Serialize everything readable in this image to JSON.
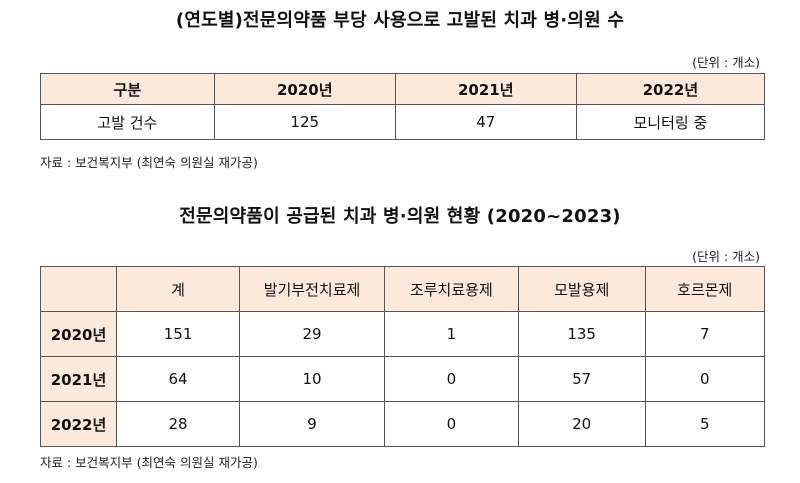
{
  "section1": {
    "title": "(연도별)전문의약품 부당 사용으로 고발된 치과 병·의원 수",
    "unit": "(단위 : 개소)",
    "columns": [
      "구분",
      "2020년",
      "2021년",
      "2022년"
    ],
    "row": {
      "label": "고발 건수",
      "values": [
        "125",
        "47",
        "모니터링 중"
      ]
    },
    "source": "자료 : 보건복지부 (최연숙 의원실 재가공)"
  },
  "section2": {
    "title": "전문의약품이 공급된 치과 병·의원 현황 (2020~2023)",
    "unit": "(단위 : 개소)",
    "columns": [
      "",
      "계",
      "발기부전치료제",
      "조루치료용제",
      "모발용제",
      "호르몬제"
    ],
    "rows": [
      {
        "label": "2020년",
        "values": [
          "151",
          "29",
          "1",
          "135",
          "7"
        ]
      },
      {
        "label": "2021년",
        "values": [
          "64",
          "10",
          "0",
          "57",
          "0"
        ]
      },
      {
        "label": "2022년",
        "values": [
          "28",
          "9",
          "0",
          "20",
          "5"
        ]
      }
    ],
    "source": "자료 : 보건복지부 (최연숙 의원실 재가공)"
  }
}
